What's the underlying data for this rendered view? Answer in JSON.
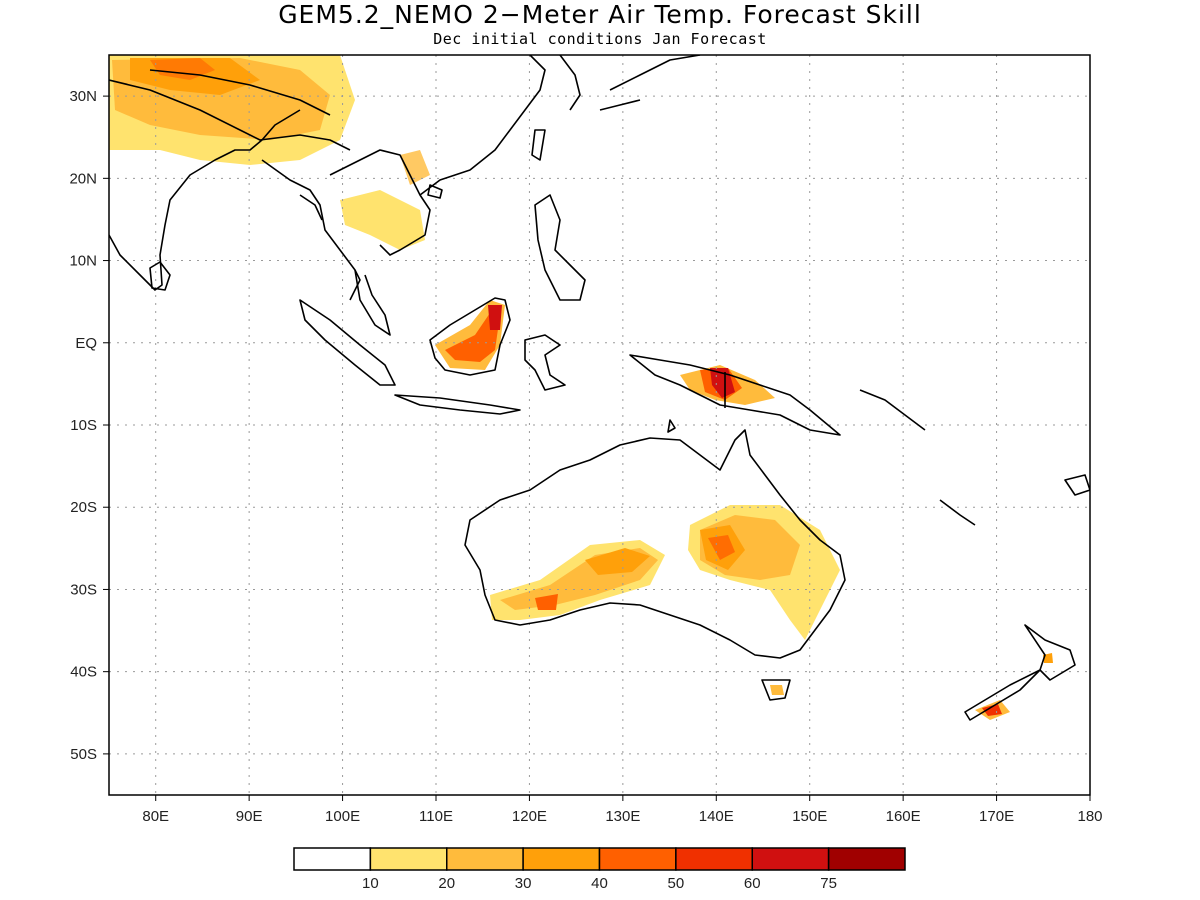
{
  "title": "GEM5.2_NEMO 2−Meter Air Temp. Forecast Skill",
  "subtitle": "Dec initial conditions  Jan Forecast",
  "map": {
    "lon_range": [
      75,
      180
    ],
    "lat_range": [
      -55,
      35
    ],
    "lon_ticks": [
      "80E",
      "90E",
      "100E",
      "110E",
      "120E",
      "130E",
      "140E",
      "150E",
      "160E",
      "170E",
      "180"
    ],
    "lon_tick_values": [
      80,
      90,
      100,
      110,
      120,
      130,
      140,
      150,
      160,
      170,
      180
    ],
    "lat_ticks": [
      "30N",
      "20N",
      "10N",
      "EQ",
      "10S",
      "20S",
      "30S",
      "40S",
      "50S"
    ],
    "lat_tick_values": [
      30,
      20,
      10,
      0,
      -10,
      -20,
      -30,
      -40,
      -50
    ],
    "grid": true
  },
  "colorbar": {
    "labels": [
      "10",
      "20",
      "30",
      "40",
      "50",
      "60",
      "75"
    ],
    "colors": [
      "#ffffff",
      "#ffe36e",
      "#ffbb3c",
      "#ffa00a",
      "#ff6000",
      "#f03000",
      "#d01010",
      "#a00000"
    ]
  }
}
